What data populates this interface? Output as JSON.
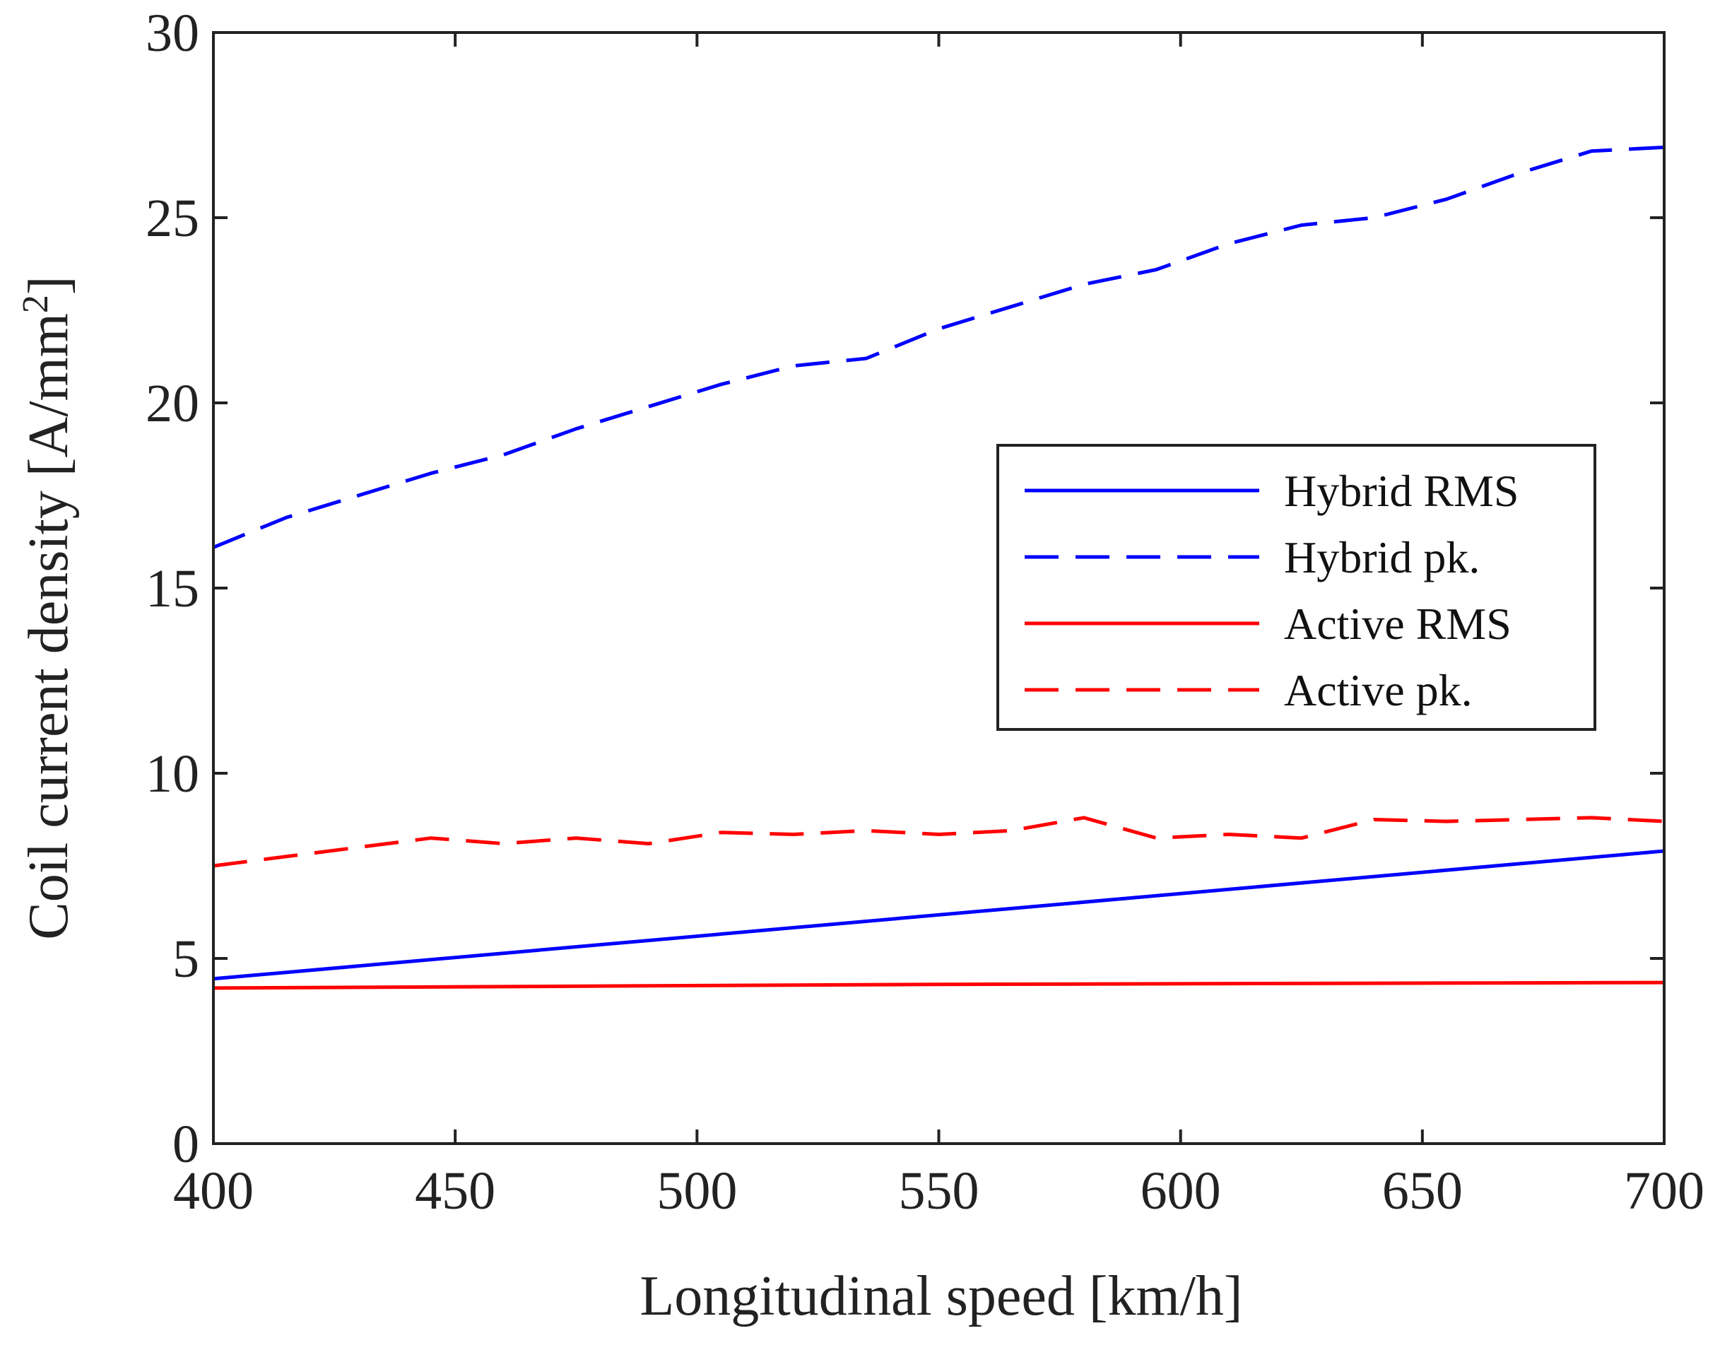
{
  "chart_data": {
    "type": "line",
    "title": "",
    "xlabel": "Longitudinal speed [km/h]",
    "ylabel_main": "Coil current density [A/mm",
    "ylabel_sup": "2",
    "ylabel_end": "]",
    "xlim": [
      400,
      700
    ],
    "ylim": [
      0,
      30
    ],
    "xticks": [
      400,
      450,
      500,
      550,
      600,
      650,
      700
    ],
    "yticks": [
      0,
      5,
      10,
      15,
      20,
      25,
      30
    ],
    "grid": false,
    "legend_position": "center-right",
    "series": [
      {
        "name": "Hybrid RMS",
        "color": "#0000ff",
        "style": "solid",
        "x": [
          400,
          700
        ],
        "y": [
          4.45,
          7.9
        ]
      },
      {
        "name": "Hybrid pk.",
        "color": "#0000ff",
        "style": "dashed",
        "x": [
          400,
          415,
          430,
          445,
          460,
          475,
          490,
          505,
          520,
          535,
          550,
          565,
          580,
          595,
          610,
          625,
          640,
          655,
          670,
          685,
          700
        ],
        "y": [
          16.1,
          16.9,
          17.5,
          18.1,
          18.6,
          19.3,
          19.9,
          20.5,
          21.0,
          21.2,
          22.0,
          22.6,
          23.2,
          23.6,
          24.3,
          24.8,
          25.0,
          25.5,
          26.2,
          26.8,
          26.9
        ]
      },
      {
        "name": "Active RMS",
        "color": "#ff0000",
        "style": "solid",
        "x": [
          400,
          550,
          700
        ],
        "y": [
          4.2,
          4.3,
          4.35
        ]
      },
      {
        "name": "Active pk.",
        "color": "#ff0000",
        "style": "dashed",
        "x": [
          400,
          415,
          430,
          445,
          460,
          475,
          490,
          505,
          520,
          535,
          550,
          565,
          580,
          595,
          610,
          625,
          640,
          655,
          670,
          685,
          700
        ],
        "y": [
          7.5,
          7.75,
          8.0,
          8.25,
          8.1,
          8.25,
          8.1,
          8.4,
          8.35,
          8.45,
          8.35,
          8.45,
          8.8,
          8.25,
          8.35,
          8.25,
          8.75,
          8.7,
          8.75,
          8.8,
          8.7
        ]
      }
    ]
  }
}
